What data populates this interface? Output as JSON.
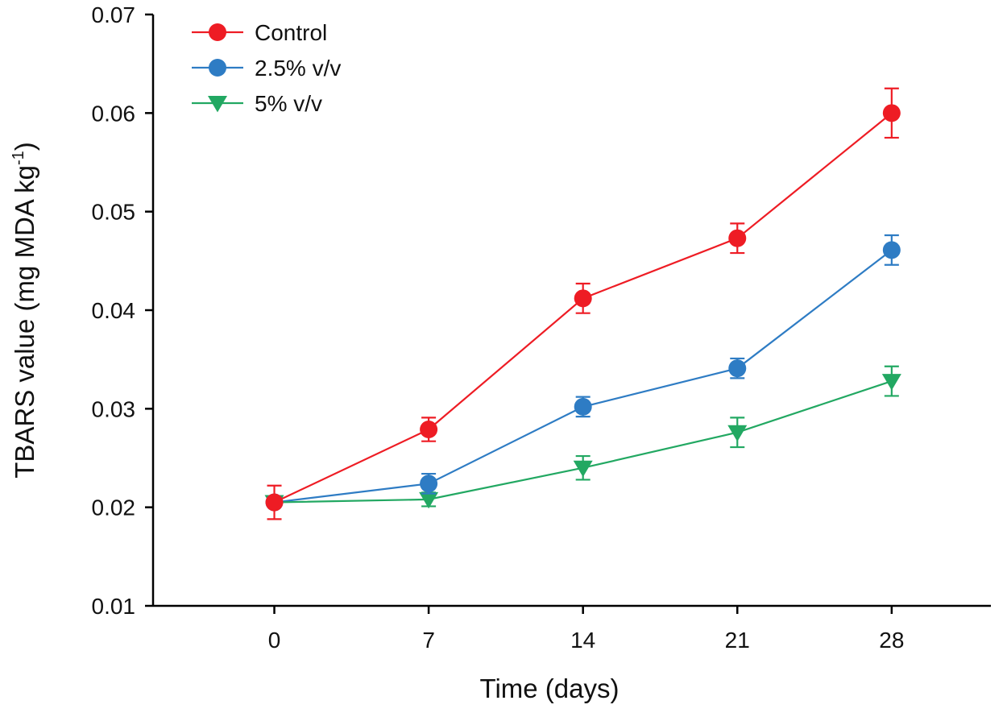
{
  "chart_data": {
    "type": "line",
    "xlabel": "Time (days)",
    "ylabel": "TBARS value (mg MDA kg",
    "ylabel_sup": "-1",
    "ylabel_end": ")",
    "x_ticks": [
      "0",
      "7",
      "14",
      "21",
      "28"
    ],
    "y_ticks": [
      "0.01",
      "0.02",
      "0.03",
      "0.04",
      "0.05",
      "0.06",
      "0.07"
    ],
    "xlim": [
      -5.5,
      32.5
    ],
    "ylim": [
      0.01,
      0.07
    ],
    "legend_position": "top-left",
    "grid": false,
    "x": [
      0,
      7,
      14,
      21,
      28
    ],
    "series": [
      {
        "name": "Control",
        "color": "#ee1c24",
        "marker": "circle",
        "values": [
          0.0205,
          0.0279,
          0.0412,
          0.0473,
          0.06
        ],
        "errors": [
          0.0017,
          0.0012,
          0.0015,
          0.0015,
          0.0025
        ]
      },
      {
        "name": "2.5% v/v",
        "color": "#2e7cc4",
        "marker": "circle",
        "values": [
          0.0205,
          0.0224,
          0.0302,
          0.0341,
          0.0461
        ],
        "errors": [
          0.0,
          0.001,
          0.001,
          0.001,
          0.0015
        ]
      },
      {
        "name": "5% v/v",
        "color": "#22a862",
        "marker": "triangle-down",
        "values": [
          0.0205,
          0.0208,
          0.024,
          0.0276,
          0.0328
        ],
        "errors": [
          0.0,
          0.0007,
          0.0012,
          0.0015,
          0.0015
        ]
      }
    ]
  }
}
